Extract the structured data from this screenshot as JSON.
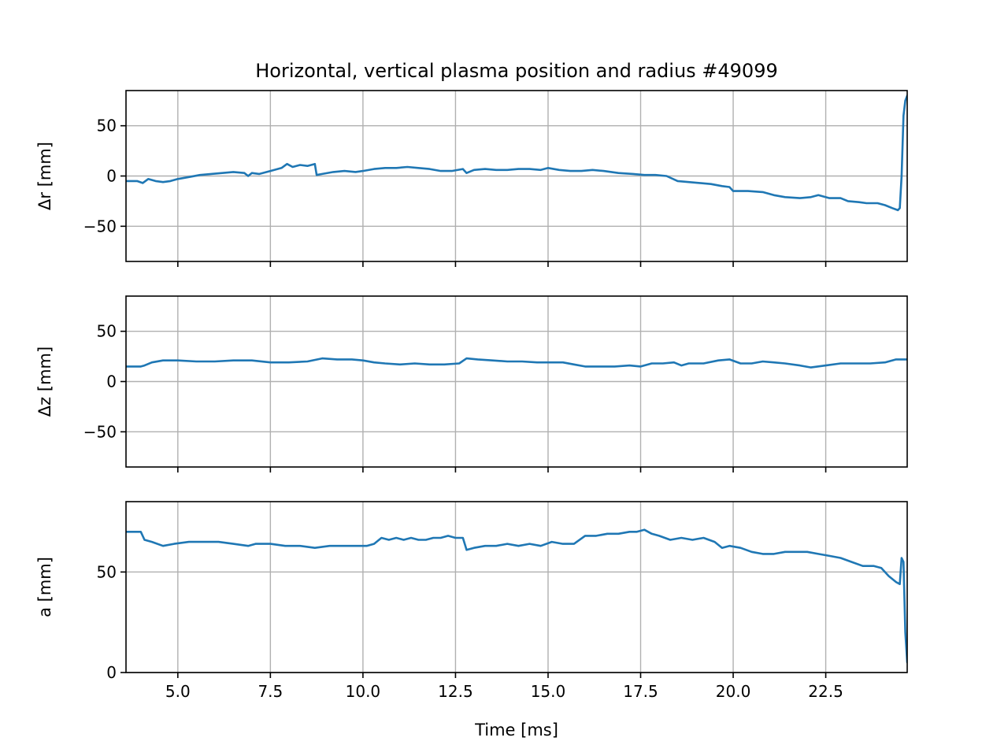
{
  "title": "Horizontal, vertical plasma position and radius #49099",
  "line_color": "#1f77b4",
  "chart_data": [
    {
      "type": "line",
      "ylabel": "Δr [mm]",
      "xlabel": "",
      "xlim": [
        3.6,
        24.7
      ],
      "ylim": [
        -85,
        85
      ],
      "xticks": [
        5.0,
        7.5,
        10.0,
        12.5,
        15.0,
        17.5,
        20.0,
        22.5
      ],
      "xtick_labels": [
        "",
        "",
        "",
        "",
        "",
        "",
        "",
        ""
      ],
      "yticks": [
        -50,
        0,
        50
      ],
      "ytick_labels": [
        "−50",
        "0",
        "50"
      ],
      "grid": true,
      "series": [
        {
          "x": [
            3.6,
            3.9,
            4.05,
            4.2,
            4.4,
            4.6,
            4.8,
            5.0,
            5.3,
            5.6,
            5.9,
            6.2,
            6.5,
            6.8,
            6.9,
            7.0,
            7.2,
            7.5,
            7.8,
            7.95,
            8.1,
            8.3,
            8.5,
            8.7,
            8.75,
            8.9,
            9.2,
            9.5,
            9.8,
            10.0,
            10.3,
            10.6,
            10.9,
            11.2,
            11.5,
            11.8,
            12.1,
            12.4,
            12.7,
            12.8,
            13.0,
            13.3,
            13.6,
            13.9,
            14.2,
            14.5,
            14.8,
            15.0,
            15.3,
            15.6,
            15.9,
            16.2,
            16.5,
            16.9,
            17.3,
            17.6,
            17.9,
            18.2,
            18.5,
            18.8,
            19.1,
            19.4,
            19.7,
            19.9,
            20.0,
            20.4,
            20.8,
            21.1,
            21.4,
            21.8,
            22.1,
            22.3,
            22.6,
            22.9,
            23.1,
            23.4,
            23.6,
            23.9,
            24.1,
            24.3,
            24.45,
            24.5,
            24.55,
            24.6,
            24.65,
            24.7
          ],
          "y": [
            -5,
            -5,
            -7,
            -3,
            -5,
            -6,
            -5,
            -3,
            -1,
            1,
            2,
            3,
            4,
            3,
            0,
            3,
            2,
            5,
            8,
            12,
            9,
            11,
            10,
            12,
            1,
            2,
            4,
            5,
            4,
            5,
            7,
            8,
            8,
            9,
            8,
            7,
            5,
            5,
            7,
            3,
            6,
            7,
            6,
            6,
            7,
            7,
            6,
            8,
            6,
            5,
            5,
            6,
            5,
            3,
            2,
            1,
            1,
            0,
            -5,
            -6,
            -7,
            -8,
            -10,
            -11,
            -15,
            -15,
            -16,
            -19,
            -21,
            -22,
            -21,
            -19,
            -22,
            -22,
            -25,
            -26,
            -27,
            -27,
            -29,
            -32,
            -34,
            -32,
            0,
            60,
            75,
            80
          ]
        }
      ]
    },
    {
      "type": "line",
      "ylabel": "Δz [mm]",
      "xlabel": "",
      "xlim": [
        3.6,
        24.7
      ],
      "ylim": [
        -85,
        85
      ],
      "xticks": [
        5.0,
        7.5,
        10.0,
        12.5,
        15.0,
        17.5,
        20.0,
        22.5
      ],
      "xtick_labels": [
        "",
        "",
        "",
        "",
        "",
        "",
        "",
        ""
      ],
      "yticks": [
        -50,
        0,
        50
      ],
      "ytick_labels": [
        "−50",
        "0",
        "50"
      ],
      "grid": true,
      "series": [
        {
          "x": [
            3.6,
            4.0,
            4.1,
            4.3,
            4.6,
            5.0,
            5.5,
            6.0,
            6.5,
            7.0,
            7.5,
            8.0,
            8.5,
            8.9,
            9.3,
            9.7,
            10.0,
            10.3,
            10.6,
            11.0,
            11.4,
            11.8,
            12.2,
            12.6,
            12.8,
            13.1,
            13.5,
            13.9,
            14.3,
            14.7,
            15.1,
            15.4,
            15.7,
            16.0,
            16.4,
            16.8,
            17.2,
            17.5,
            17.8,
            18.1,
            18.4,
            18.6,
            18.8,
            19.2,
            19.6,
            19.9,
            20.2,
            20.5,
            20.8,
            21.1,
            21.4,
            21.8,
            22.1,
            22.5,
            22.9,
            23.3,
            23.7,
            24.1,
            24.4,
            24.7
          ],
          "y": [
            15,
            15,
            16,
            19,
            21,
            21,
            20,
            20,
            21,
            21,
            19,
            19,
            20,
            23,
            22,
            22,
            21,
            19,
            18,
            17,
            18,
            17,
            17,
            18,
            23,
            22,
            21,
            20,
            20,
            19,
            19,
            19,
            17,
            15,
            15,
            15,
            16,
            15,
            18,
            18,
            19,
            16,
            18,
            18,
            21,
            22,
            18,
            18,
            20,
            19,
            18,
            16,
            14,
            16,
            18,
            18,
            18,
            19,
            22,
            22
          ]
        }
      ]
    },
    {
      "type": "line",
      "ylabel": "a [mm]",
      "xlabel": "Time [ms]",
      "xlim": [
        3.6,
        24.7
      ],
      "ylim": [
        0,
        85
      ],
      "xticks": [
        5.0,
        7.5,
        10.0,
        12.5,
        15.0,
        17.5,
        20.0,
        22.5
      ],
      "xtick_labels": [
        "5.0",
        "7.5",
        "10.0",
        "12.5",
        "15.0",
        "17.5",
        "20.0",
        "22.5"
      ],
      "yticks": [
        0,
        50
      ],
      "ytick_labels": [
        "0",
        "50"
      ],
      "grid": true,
      "series": [
        {
          "x": [
            3.6,
            3.9,
            4.0,
            4.1,
            4.3,
            4.6,
            4.9,
            5.3,
            5.7,
            6.1,
            6.5,
            6.9,
            7.1,
            7.5,
            7.9,
            8.3,
            8.7,
            9.1,
            9.5,
            9.9,
            10.1,
            10.3,
            10.5,
            10.7,
            10.9,
            11.1,
            11.3,
            11.5,
            11.7,
            11.9,
            12.1,
            12.3,
            12.5,
            12.7,
            12.8,
            13.0,
            13.3,
            13.6,
            13.9,
            14.2,
            14.5,
            14.8,
            15.1,
            15.4,
            15.7,
            16.0,
            16.3,
            16.6,
            16.9,
            17.2,
            17.4,
            17.6,
            17.8,
            18.0,
            18.3,
            18.6,
            18.9,
            19.2,
            19.5,
            19.7,
            19.9,
            20.2,
            20.5,
            20.8,
            21.1,
            21.4,
            21.7,
            22.0,
            22.3,
            22.6,
            22.9,
            23.2,
            23.5,
            23.8,
            24.0,
            24.2,
            24.4,
            24.5,
            24.55,
            24.6,
            24.65,
            24.7
          ],
          "y": [
            70,
            70,
            70,
            66,
            65,
            63,
            64,
            65,
            65,
            65,
            64,
            63,
            64,
            64,
            63,
            63,
            62,
            63,
            63,
            63,
            63,
            64,
            67,
            66,
            67,
            66,
            67,
            66,
            66,
            67,
            67,
            68,
            67,
            67,
            61,
            62,
            63,
            63,
            64,
            63,
            64,
            63,
            65,
            64,
            64,
            68,
            68,
            69,
            69,
            70,
            70,
            71,
            69,
            68,
            66,
            67,
            66,
            67,
            65,
            62,
            63,
            62,
            60,
            59,
            59,
            60,
            60,
            60,
            59,
            58,
            57,
            55,
            53,
            53,
            52,
            48,
            45,
            44,
            57,
            55,
            20,
            5
          ]
        }
      ]
    }
  ]
}
